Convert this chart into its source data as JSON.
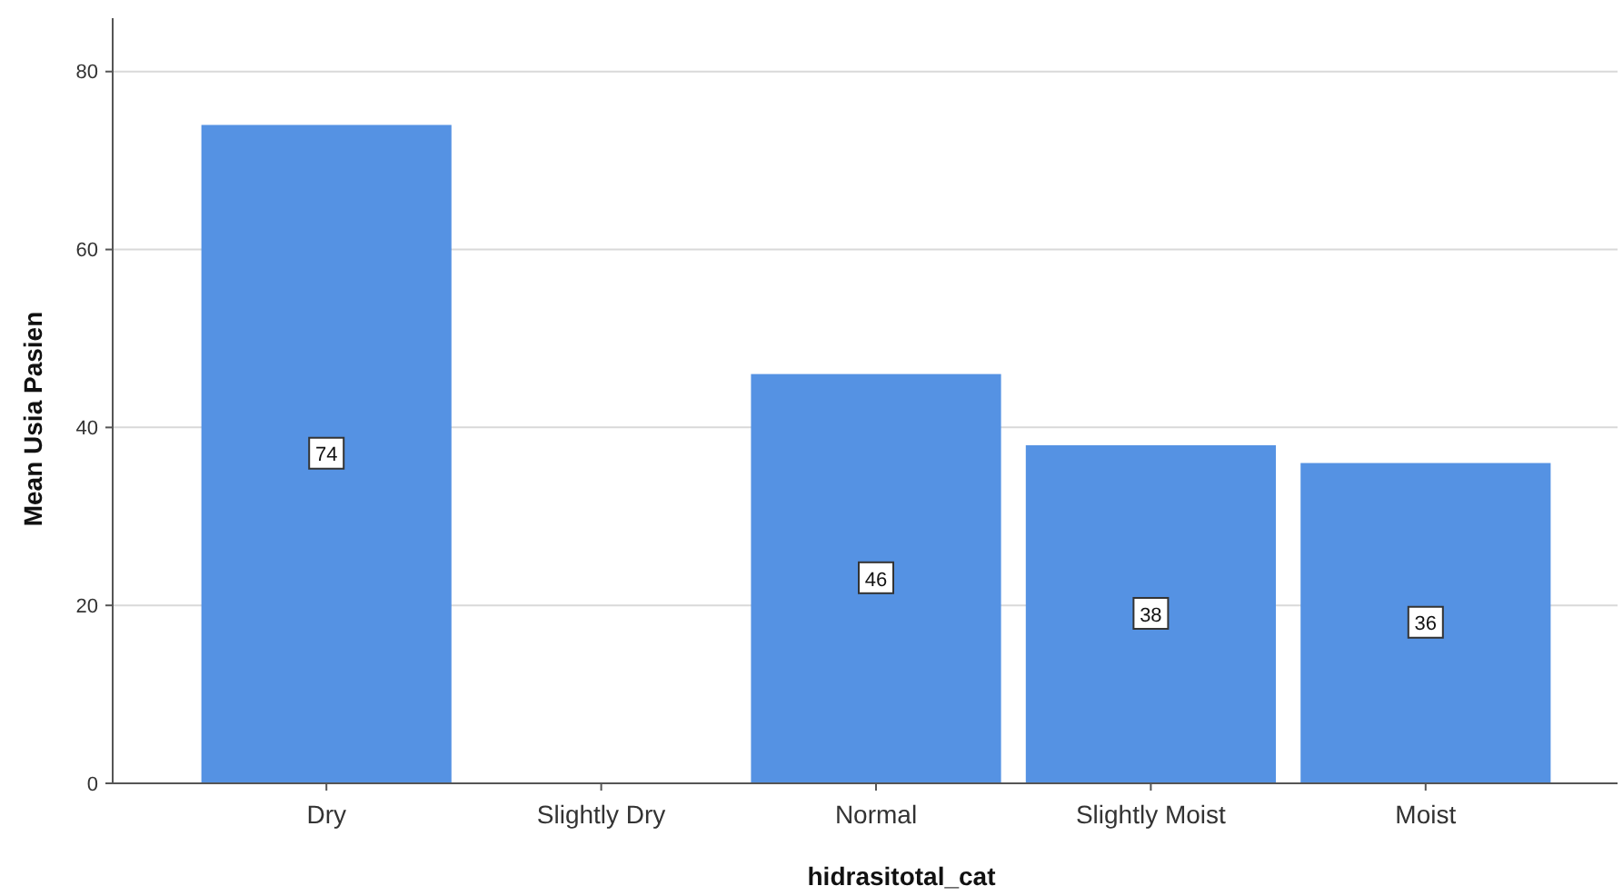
{
  "chart_data": {
    "type": "bar",
    "xlabel": "hidrasitotal_cat",
    "ylabel": "Mean Usia Pasien",
    "categories": [
      "Dry",
      "Slightly Dry",
      "Normal",
      "Slightly Moist",
      "Moist"
    ],
    "values": [
      74,
      null,
      46,
      38,
      36
    ],
    "color": "#5592e3",
    "ylim": [
      0,
      86
    ],
    "yticks": [
      0,
      20,
      40,
      60,
      80
    ],
    "grid": "y",
    "data_labels": true
  }
}
